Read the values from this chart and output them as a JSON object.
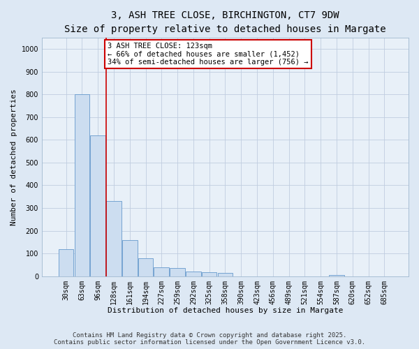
{
  "title_line1": "3, ASH TREE CLOSE, BIRCHINGTON, CT7 9DW",
  "title_line2": "Size of property relative to detached houses in Margate",
  "xlabel": "Distribution of detached houses by size in Margate",
  "ylabel": "Number of detached properties",
  "bar_color": "#ccddf0",
  "bar_edge_color": "#6699cc",
  "categories": [
    "30sqm",
    "63sqm",
    "96sqm",
    "128sqm",
    "161sqm",
    "194sqm",
    "227sqm",
    "259sqm",
    "292sqm",
    "325sqm",
    "358sqm",
    "390sqm",
    "423sqm",
    "456sqm",
    "489sqm",
    "521sqm",
    "554sqm",
    "587sqm",
    "620sqm",
    "652sqm",
    "685sqm"
  ],
  "values": [
    120,
    800,
    620,
    330,
    160,
    80,
    38,
    35,
    20,
    18,
    13,
    0,
    0,
    0,
    0,
    0,
    0,
    5,
    0,
    0,
    0
  ],
  "ylim": [
    0,
    1050
  ],
  "yticks": [
    0,
    100,
    200,
    300,
    400,
    500,
    600,
    700,
    800,
    900,
    1000
  ],
  "vline_color": "#cc0000",
  "vline_x_idx": 2.5,
  "annotation_text": "3 ASH TREE CLOSE: 123sqm\n← 66% of detached houses are smaller (1,452)\n34% of semi-detached houses are larger (756) →",
  "annotation_box_color": "#cc0000",
  "grid_color": "#c0cde0",
  "background_color": "#dde8f4",
  "plot_bg_color": "#e8f0f8",
  "footer_line1": "Contains HM Land Registry data © Crown copyright and database right 2025.",
  "footer_line2": "Contains public sector information licensed under the Open Government Licence v3.0.",
  "title_fontsize": 10,
  "subtitle_fontsize": 9,
  "ylabel_fontsize": 8,
  "xlabel_fontsize": 8,
  "tick_fontsize": 7,
  "annotation_fontsize": 7.5,
  "footer_fontsize": 6.5
}
